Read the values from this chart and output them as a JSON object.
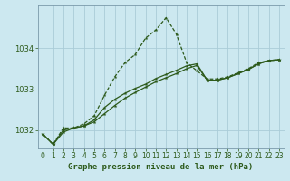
{
  "title": "Graphe pression niveau de la mer (hPa)",
  "background_color": "#cce8f0",
  "line_color": "#2d5a1b",
  "grid_color": "#aaccd8",
  "xlim": [
    -0.5,
    23.5
  ],
  "ylim": [
    1031.55,
    1035.05
  ],
  "yticks": [
    1032,
    1033,
    1034
  ],
  "xticks": [
    0,
    1,
    2,
    3,
    4,
    5,
    6,
    7,
    8,
    9,
    10,
    11,
    12,
    13,
    14,
    15,
    16,
    17,
    18,
    19,
    20,
    21,
    22,
    23
  ],
  "series1_x": [
    0,
    1,
    2,
    3,
    4,
    5,
    6,
    7,
    8,
    9,
    10,
    11,
    12,
    13,
    14,
    15,
    16,
    17,
    18,
    19,
    20,
    21,
    22,
    23
  ],
  "series1_y": [
    1031.9,
    1031.65,
    1032.05,
    1032.05,
    1032.15,
    1032.35,
    1032.85,
    1033.3,
    1033.65,
    1033.85,
    1034.25,
    1034.45,
    1034.75,
    1034.35,
    1033.65,
    1033.45,
    1033.25,
    1033.25,
    1033.3,
    1033.4,
    1033.5,
    1033.65,
    1033.7,
    1033.72
  ],
  "series2_x": [
    0,
    1,
    2,
    3,
    4,
    5,
    6,
    7,
    8,
    9,
    10,
    11,
    12,
    13,
    14,
    15,
    16,
    17,
    18,
    19,
    20,
    21,
    22,
    23
  ],
  "series2_y": [
    1031.9,
    1031.65,
    1031.95,
    1032.05,
    1032.1,
    1032.2,
    1032.4,
    1032.6,
    1032.78,
    1032.92,
    1033.05,
    1033.18,
    1033.28,
    1033.38,
    1033.5,
    1033.58,
    1033.22,
    1033.22,
    1033.28,
    1033.38,
    1033.48,
    1033.62,
    1033.7,
    1033.72
  ],
  "series3_x": [
    0,
    1,
    2,
    3,
    4,
    5,
    6,
    7,
    8,
    9,
    10,
    11,
    12,
    13,
    14,
    15,
    16,
    17,
    18,
    19,
    20,
    21,
    22,
    23
  ],
  "series3_y": [
    1031.9,
    1031.65,
    1032.0,
    1032.05,
    1032.1,
    1032.25,
    1032.55,
    1032.75,
    1032.9,
    1033.02,
    1033.12,
    1033.26,
    1033.36,
    1033.46,
    1033.57,
    1033.62,
    1033.22,
    1033.22,
    1033.28,
    1033.38,
    1033.48,
    1033.62,
    1033.7,
    1033.72
  ],
  "xlabel_fontsize": 6.5,
  "tick_fontsize": 5.5,
  "ytick_fontsize": 6.0
}
